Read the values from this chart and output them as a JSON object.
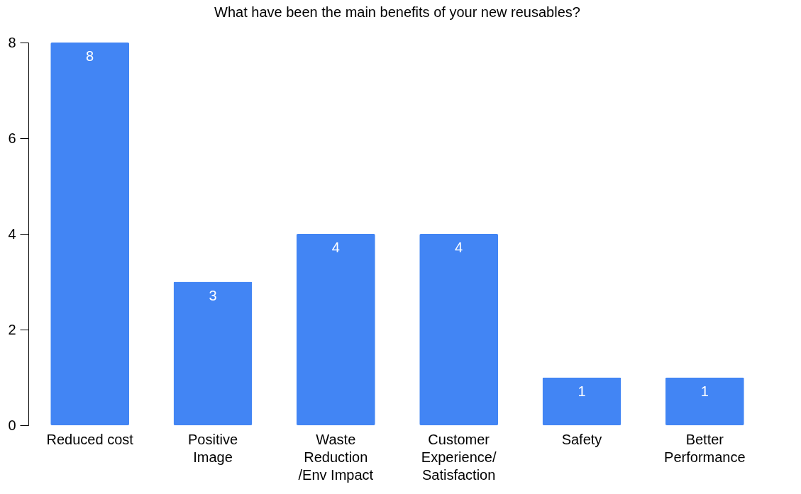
{
  "chart_data": {
    "type": "bar",
    "title": "What have been the main benefits of your new reusables?",
    "categories": [
      "Reduced cost",
      "Positive Image",
      "Waste Reduction /Env Impact",
      "Customer Experience/ Satisfaction",
      "Safety",
      "Better Performance"
    ],
    "values": [
      8,
      3,
      4,
      4,
      1,
      1
    ],
    "color": "#4285f4",
    "ylim": [
      0,
      8
    ],
    "yticks": [
      0,
      2,
      4,
      6,
      8
    ],
    "grid": false,
    "data_labels": true
  }
}
